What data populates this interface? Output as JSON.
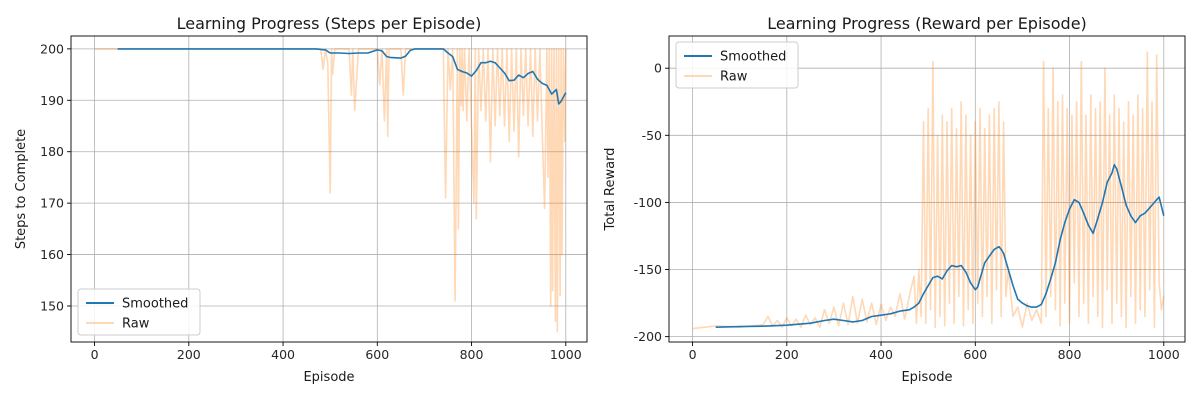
{
  "chart_data": [
    {
      "type": "line",
      "title": "Learning Progress (Steps per Episode)",
      "xlabel": "Episode",
      "ylabel": "Steps to Complete",
      "xlim": [
        -50,
        1045
      ],
      "ylim": [
        143,
        202.5
      ],
      "xticks": [
        0,
        200,
        400,
        600,
        800,
        1000
      ],
      "yticks": [
        150,
        160,
        170,
        180,
        190,
        200
      ],
      "grid": true,
      "legend": "lower-left",
      "colors": {
        "smoothed": "#1f77b4",
        "raw": "#ff7f0e"
      },
      "series": [
        {
          "name": "Smoothed",
          "x": [
            49,
            100,
            200,
            300,
            400,
            470,
            490,
            500,
            520,
            540,
            560,
            580,
            600,
            610,
            620,
            630,
            650,
            660,
            670,
            680,
            700,
            720,
            740,
            750,
            760,
            770,
            780,
            790,
            800,
            810,
            820,
            830,
            840,
            850,
            860,
            870,
            880,
            890,
            900,
            910,
            920,
            930,
            940,
            950,
            960,
            970,
            980,
            985,
            990,
            1000
          ],
          "values": [
            200,
            200,
            200,
            200,
            200,
            200,
            199.8,
            199.2,
            199.2,
            199.1,
            199.2,
            199.2,
            199.8,
            199.6,
            198.5,
            198.3,
            198.2,
            198.6,
            199.7,
            200,
            200,
            200,
            200,
            199.2,
            198.5,
            196,
            195.6,
            195.3,
            194.7,
            195.8,
            197.3,
            197.3,
            197.6,
            197.3,
            196.3,
            195.3,
            193.8,
            193.9,
            194.9,
            194.4,
            195.2,
            195.6,
            194.1,
            193.3,
            192.9,
            191.2,
            192.1,
            189.3,
            189.8,
            191.5
          ]
        },
        {
          "name": "Raw",
          "x": [
            0,
            480,
            485,
            490,
            495,
            500,
            503,
            505,
            510,
            540,
            545,
            548,
            552,
            560,
            600,
            605,
            610,
            615,
            620,
            622,
            625,
            630,
            650,
            655,
            660,
            700,
            740,
            745,
            750,
            755,
            760,
            765,
            770,
            772,
            775,
            778,
            780,
            782,
            785,
            790,
            795,
            800,
            805,
            808,
            810,
            815,
            820,
            825,
            830,
            835,
            840,
            845,
            850,
            855,
            860,
            865,
            870,
            875,
            880,
            885,
            890,
            895,
            900,
            905,
            910,
            915,
            920,
            925,
            930,
            935,
            940,
            945,
            950,
            955,
            960,
            962,
            965,
            968,
            970,
            972,
            975,
            978,
            980,
            982,
            985,
            988,
            990,
            992,
            995,
            998,
            1000
          ],
          "values": [
            200,
            200,
            196,
            200,
            197,
            172,
            200,
            195,
            200,
            200,
            191,
            200,
            188,
            200,
            200,
            193,
            200,
            186,
            200,
            183,
            200,
            200,
            200,
            191,
            200,
            200,
            200,
            171,
            200,
            192,
            200,
            151,
            200,
            165,
            200,
            189,
            200,
            188,
            200,
            186,
            200,
            185,
            170,
            200,
            167,
            200,
            188,
            200,
            186,
            200,
            178,
            200,
            185,
            200,
            187,
            200,
            185,
            200,
            182,
            200,
            184,
            200,
            179,
            200,
            187,
            200,
            185,
            200,
            183,
            200,
            186,
            200,
            184,
            169,
            200,
            175,
            200,
            150,
            200,
            153,
            200,
            147,
            200,
            145,
            200,
            152,
            200,
            160,
            200,
            182,
            200
          ]
        }
      ]
    },
    {
      "type": "line",
      "title": "Learning Progress (Reward per Episode)",
      "xlabel": "Episode",
      "ylabel": "Total Reward",
      "xlim": [
        -50,
        1045
      ],
      "ylim": [
        -204,
        24
      ],
      "xticks": [
        0,
        200,
        400,
        600,
        800,
        1000
      ],
      "yticks": [
        -200,
        -150,
        -100,
        -50,
        0
      ],
      "grid": true,
      "legend": "upper-left",
      "colors": {
        "smoothed": "#1f77b4",
        "raw": "#ff7f0e"
      },
      "series": [
        {
          "name": "Smoothed",
          "x": [
            49,
            100,
            150,
            200,
            250,
            280,
            300,
            320,
            340,
            360,
            380,
            400,
            420,
            440,
            460,
            470,
            480,
            490,
            500,
            510,
            520,
            530,
            540,
            550,
            560,
            570,
            580,
            590,
            600,
            605,
            610,
            620,
            630,
            640,
            650,
            655,
            660,
            670,
            680,
            690,
            700,
            710,
            720,
            730,
            740,
            750,
            760,
            770,
            780,
            790,
            800,
            810,
            820,
            830,
            840,
            850,
            860,
            870,
            880,
            890,
            895,
            900,
            910,
            920,
            930,
            940,
            950,
            960,
            970,
            980,
            985,
            990,
            1000
          ],
          "values": [
            -193,
            -192.5,
            -192.2,
            -191.5,
            -190,
            -188,
            -187,
            -188,
            -189,
            -188,
            -185,
            -184,
            -183,
            -181,
            -180,
            -178,
            -175,
            -168,
            -162,
            -156,
            -155,
            -157,
            -151,
            -147,
            -148,
            -147,
            -152,
            -160,
            -165,
            -163,
            -157,
            -145,
            -140,
            -135,
            -133,
            -135,
            -138,
            -150,
            -162,
            -172,
            -175,
            -177,
            -178,
            -178,
            -176,
            -168,
            -157,
            -145,
            -128,
            -115,
            -105,
            -98,
            -100,
            -108,
            -117,
            -123,
            -112,
            -100,
            -85,
            -78,
            -72,
            -75,
            -88,
            -102,
            -110,
            -115,
            -110,
            -108,
            -104,
            -100,
            -98,
            -96,
            -110
          ]
        },
        {
          "name": "Raw",
          "x": [
            0,
            50,
            100,
            150,
            160,
            170,
            180,
            190,
            200,
            210,
            220,
            230,
            240,
            250,
            260,
            270,
            280,
            290,
            300,
            310,
            320,
            330,
            340,
            350,
            360,
            370,
            380,
            390,
            400,
            410,
            420,
            430,
            440,
            450,
            460,
            470,
            475,
            480,
            485,
            490,
            495,
            500,
            505,
            510,
            515,
            520,
            525,
            530,
            535,
            540,
            545,
            550,
            555,
            560,
            565,
            570,
            575,
            580,
            585,
            590,
            595,
            600,
            605,
            610,
            615,
            620,
            625,
            630,
            635,
            640,
            645,
            650,
            655,
            660,
            665,
            670,
            680,
            690,
            700,
            710,
            720,
            730,
            740,
            745,
            750,
            755,
            760,
            765,
            770,
            775,
            780,
            785,
            790,
            795,
            800,
            805,
            810,
            815,
            820,
            825,
            830,
            835,
            840,
            845,
            850,
            855,
            860,
            865,
            870,
            875,
            880,
            885,
            890,
            895,
            900,
            905,
            910,
            915,
            920,
            925,
            930,
            935,
            940,
            945,
            950,
            955,
            960,
            965,
            970,
            975,
            980,
            985,
            990,
            995,
            1000
          ],
          "values": [
            -194,
            -192,
            -193,
            -191,
            -185,
            -192,
            -188,
            -193,
            -186,
            -192,
            -187,
            -193,
            -184,
            -191,
            -186,
            -193,
            -180,
            -190,
            -178,
            -192,
            -175,
            -191,
            -170,
            -190,
            -172,
            -189,
            -175,
            -191,
            -176,
            -188,
            -178,
            -185,
            -168,
            -187,
            -170,
            -155,
            -190,
            -150,
            -185,
            -40,
            -190,
            -30,
            -180,
            5,
            -193,
            -50,
            -185,
            -35,
            -192,
            -40,
            -175,
            -30,
            -190,
            -45,
            -170,
            -25,
            -192,
            -35,
            -180,
            -50,
            -190,
            -40,
            -175,
            -30,
            -185,
            -45,
            -170,
            -35,
            -190,
            -30,
            -165,
            -25,
            -185,
            -40,
            -170,
            -150,
            -185,
            -178,
            -193,
            -175,
            -188,
            -180,
            -190,
            5,
            -185,
            -30,
            -170,
            0,
            -180,
            -25,
            -192,
            -20,
            -175,
            -30,
            -190,
            -35,
            -160,
            -25,
            -185,
            5,
            -175,
            -35,
            -190,
            -20,
            -170,
            -30,
            -185,
            -25,
            -193,
            0,
            -165,
            -35,
            -190,
            -20,
            -175,
            -30,
            -185,
            -40,
            -193,
            -25,
            -170,
            -35,
            -190,
            -20,
            -180,
            -30,
            -185,
            12,
            -165,
            -25,
            -193,
            10,
            -160,
            -180,
            -170
          ]
        }
      ]
    }
  ]
}
